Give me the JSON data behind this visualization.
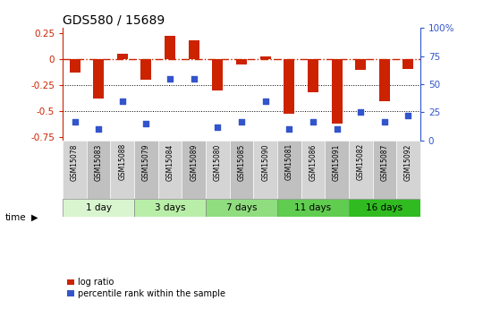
{
  "title": "GDS580 / 15689",
  "samples": [
    "GSM15078",
    "GSM15083",
    "GSM15088",
    "GSM15079",
    "GSM15084",
    "GSM15089",
    "GSM15080",
    "GSM15085",
    "GSM15090",
    "GSM15081",
    "GSM15086",
    "GSM15091",
    "GSM15082",
    "GSM15087",
    "GSM15092"
  ],
  "log_ratio": [
    -0.13,
    -0.38,
    0.05,
    -0.2,
    0.22,
    0.18,
    -0.3,
    -0.055,
    0.03,
    -0.52,
    -0.32,
    -0.62,
    -0.1,
    -0.4,
    -0.09
  ],
  "percentile": [
    17,
    10,
    35,
    15,
    55,
    55,
    12,
    17,
    35,
    10,
    17,
    10,
    25,
    17,
    22
  ],
  "groups": [
    {
      "label": "1 day",
      "count": 3,
      "color": "#d8f5d0"
    },
    {
      "label": "3 days",
      "count": 3,
      "color": "#b8eea8"
    },
    {
      "label": "7 days",
      "count": 3,
      "color": "#90dd80"
    },
    {
      "label": "11 days",
      "count": 3,
      "color": "#60cc50"
    },
    {
      "label": "16 days",
      "count": 3,
      "color": "#30bb20"
    }
  ],
  "bar_color": "#cc2200",
  "dot_color": "#3355cc",
  "dashed_color": "#cc2200",
  "ylim_left": [
    -0.78,
    0.3
  ],
  "ylim_right": [
    0,
    100
  ],
  "yticks_left": [
    0.25,
    0.0,
    -0.25,
    -0.5,
    -0.75
  ],
  "yticks_right": [
    100,
    75,
    50,
    25,
    0
  ],
  "hlines": [
    -0.25,
    -0.5
  ],
  "sample_bg_even": "#d4d4d4",
  "sample_bg_odd": "#c0c0c0"
}
